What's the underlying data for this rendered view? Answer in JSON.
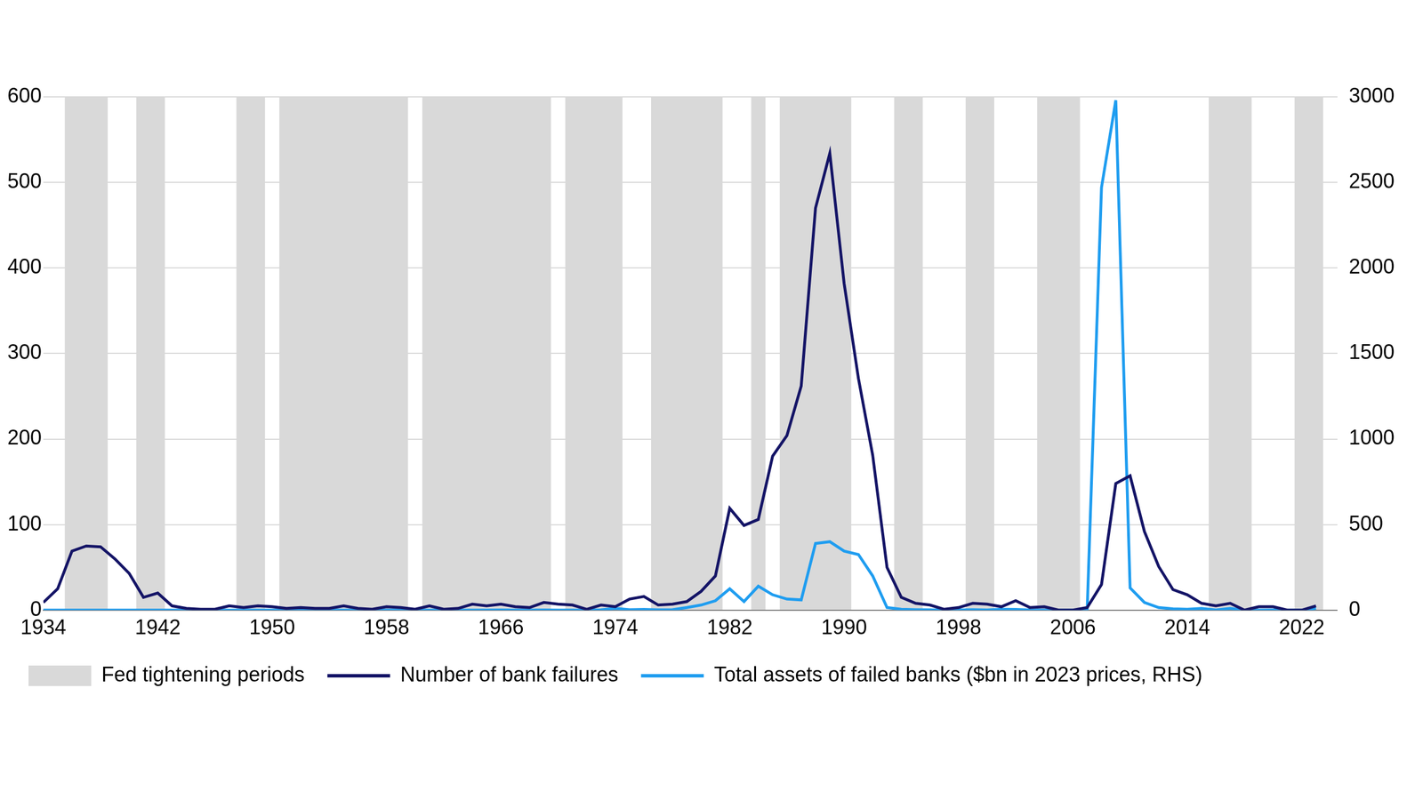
{
  "chart_data": {
    "type": "line",
    "x": [
      1934,
      1935,
      1936,
      1937,
      1938,
      1939,
      1940,
      1941,
      1942,
      1943,
      1944,
      1945,
      1946,
      1947,
      1948,
      1949,
      1950,
      1951,
      1952,
      1953,
      1954,
      1955,
      1956,
      1957,
      1958,
      1959,
      1960,
      1961,
      1962,
      1963,
      1964,
      1965,
      1966,
      1967,
      1968,
      1969,
      1970,
      1971,
      1972,
      1973,
      1974,
      1975,
      1976,
      1977,
      1978,
      1979,
      1980,
      1981,
      1982,
      1983,
      1984,
      1985,
      1986,
      1987,
      1988,
      1989,
      1990,
      1991,
      1992,
      1993,
      1994,
      1995,
      1996,
      1997,
      1998,
      1999,
      2000,
      2001,
      2002,
      2003,
      2004,
      2005,
      2006,
      2007,
      2008,
      2009,
      2010,
      2011,
      2012,
      2013,
      2014,
      2015,
      2016,
      2017,
      2018,
      2019,
      2020,
      2021,
      2022,
      2023
    ],
    "series": [
      {
        "name": "Number of bank failures",
        "color": "#141466",
        "values": [
          9,
          25,
          69,
          75,
          74,
          60,
          43,
          15,
          20,
          5,
          2,
          1,
          1,
          5,
          3,
          5,
          4,
          2,
          3,
          2,
          2,
          5,
          2,
          1,
          4,
          3,
          1,
          5,
          1,
          2,
          7,
          5,
          7,
          4,
          3,
          9,
          7,
          6,
          1,
          6,
          4,
          13,
          16,
          6,
          7,
          10,
          22,
          40,
          119,
          99,
          106,
          180,
          204,
          262,
          470,
          534,
          382,
          271,
          181,
          50,
          15,
          8,
          6,
          1,
          3,
          8,
          7,
          4,
          11,
          3,
          4,
          0,
          0,
          3,
          30,
          148,
          157,
          92,
          51,
          24,
          18,
          8,
          5,
          8,
          0,
          4,
          4,
          0,
          0,
          5
        ]
      },
      {
        "name": "Total assets of failed banks ($bn in 2023 prices, RHS)",
        "color": "#1f9df0",
        "axis": "y2",
        "values": [
          0,
          0,
          0,
          0,
          0,
          0,
          0,
          0,
          0,
          0,
          0,
          0,
          0,
          0,
          0,
          0,
          0,
          0,
          0,
          0,
          0,
          0,
          0,
          0,
          0,
          0,
          0,
          0,
          0,
          0,
          0,
          0,
          1,
          0,
          0,
          1,
          0,
          0,
          0,
          2,
          10,
          3,
          4,
          2,
          3,
          15,
          30,
          55,
          125,
          50,
          140,
          90,
          65,
          60,
          390,
          400,
          345,
          325,
          200,
          15,
          5,
          3,
          2,
          0,
          1,
          3,
          1,
          5,
          4,
          1,
          0,
          0,
          0,
          5,
          2470,
          2980,
          130,
          45,
          15,
          8,
          5,
          10,
          1,
          10,
          0,
          0,
          1,
          0,
          0,
          10
        ]
      }
    ],
    "bands": {
      "name": "Fed tightening periods",
      "color": "#d9d9d9",
      "ranges": [
        [
          1935.5,
          1938.5
        ],
        [
          1940.5,
          1942.5
        ],
        [
          1947.5,
          1949.5
        ],
        [
          1950.5,
          1959.5
        ],
        [
          1960.5,
          1969.5
        ],
        [
          1970.5,
          1974.5
        ],
        [
          1976.5,
          1981.5
        ],
        [
          1983.5,
          1984.5
        ],
        [
          1985.5,
          1990.5
        ],
        [
          1993.5,
          1995.5
        ],
        [
          1998.5,
          2000.5
        ],
        [
          2003.5,
          2006.5
        ],
        [
          2015.5,
          2018.5
        ],
        [
          2021.5,
          2023.5
        ]
      ]
    },
    "xlim": [
      1934,
      2024.5
    ],
    "xticks": [
      1934,
      1942,
      1950,
      1958,
      1966,
      1974,
      1982,
      1990,
      1998,
      2006,
      2014,
      2022
    ],
    "ylim": [
      0,
      600
    ],
    "yticks": [
      0,
      100,
      200,
      300,
      400,
      500,
      600
    ],
    "y2lim": [
      0,
      3000
    ],
    "y2ticks": [
      0,
      500,
      1000,
      1500,
      2000,
      2500,
      3000
    ],
    "grid": true,
    "legend": "bottom"
  }
}
